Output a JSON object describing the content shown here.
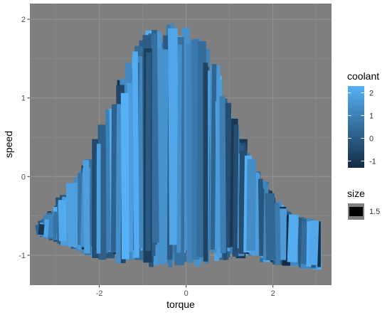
{
  "chart_data": {
    "type": "path",
    "xlabel": "torque",
    "ylabel": "speed",
    "xlim": [
      -3.6,
      3.35
    ],
    "ylim": [
      -1.38,
      2.2
    ],
    "x_ticks": [
      -2,
      0,
      2
    ],
    "y_ticks": [
      -1,
      0,
      1,
      2
    ],
    "x_tick_labels": [
      "-2",
      "0",
      "2"
    ],
    "y_tick_labels": [
      "-1",
      "0",
      "1",
      "2"
    ],
    "panel_background": "#7f7f7f",
    "grid": true,
    "colors": {
      "low": "#132b43",
      "high": "#56b1f7"
    },
    "legend": {
      "placement": "right",
      "color_title": "coolant",
      "color_range": [
        -1.3,
        2.3
      ],
      "color_breaks": [
        2,
        1,
        0,
        -1
      ],
      "color_break_labels": [
        "2",
        "1",
        "0",
        "-1"
      ],
      "size_title": "size",
      "size_break_labels": [
        "1.5"
      ]
    },
    "series_envelope": {
      "x": [
        -3.35,
        -3.0,
        -2.6,
        -2.2,
        -1.9,
        -1.6,
        -1.3,
        -1.0,
        -0.7,
        -0.4,
        0.0,
        0.3,
        0.6,
        0.9,
        1.2,
        1.5,
        1.8,
        2.1,
        2.4,
        2.7,
        3.05
      ],
      "y_top": [
        -0.6,
        -0.35,
        -0.05,
        0.35,
        0.75,
        1.15,
        1.55,
        1.85,
        2.0,
        2.05,
        2.0,
        1.9,
        1.55,
        1.05,
        0.6,
        0.25,
        -0.05,
        -0.3,
        -0.45,
        -0.5,
        -0.55
      ],
      "y_bottom": [
        -0.75,
        -0.85,
        -0.95,
        -1.05,
        -1.1,
        -1.15,
        -1.2,
        -1.22,
        -1.22,
        -1.22,
        -1.2,
        -1.2,
        -1.18,
        -1.12,
        -1.1,
        -1.08,
        -1.12,
        -1.15,
        -1.15,
        -1.18,
        -1.2
      ]
    }
  }
}
